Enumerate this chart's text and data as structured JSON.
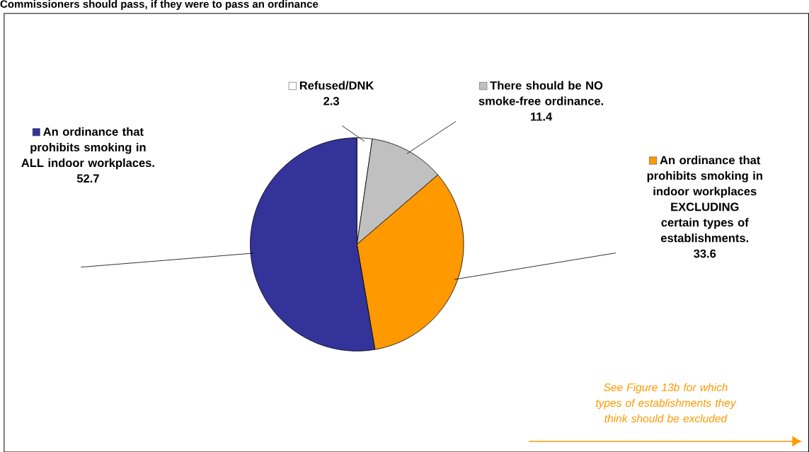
{
  "chart_data": {
    "type": "pie",
    "title": "Commissioners should pass, if they were to pass an ordinance",
    "categories": [
      "Refused/DNK",
      "There should be NO smoke-free ordinance.",
      "An ordinance that prohibits smoking in indoor workplaces EXCLUDING certain types of establishments.",
      "An ordinance that prohibits smoking in ALL indoor workplaces."
    ],
    "values": [
      2.3,
      11.4,
      33.6,
      52.7
    ],
    "colors": [
      "#ffffff",
      "#c0c0c0",
      "#ff9900",
      "#333399"
    ],
    "data_labels": true,
    "legend": "top",
    "annotations": [
      "See Figure 13b for which types of establishments they think should be excluded"
    ]
  }
}
